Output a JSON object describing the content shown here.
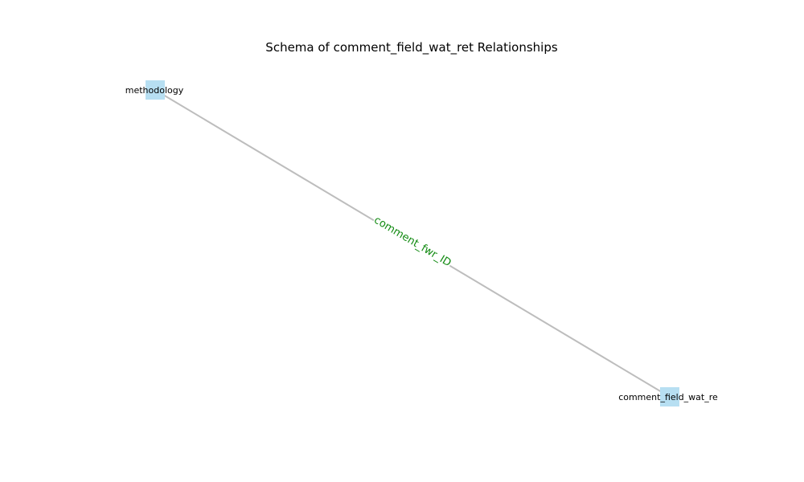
{
  "diagram": {
    "title": "Schema of comment_field_wat_ret Relationships",
    "nodes": [
      {
        "id": "methodology",
        "label": "methodology"
      },
      {
        "id": "comment_field_wat_ret",
        "label": "comment_field_wat_re"
      }
    ],
    "edges": [
      {
        "source": "methodology",
        "target": "comment_field_wat_ret",
        "label": "comment_fwr_ID"
      }
    ]
  },
  "colors": {
    "node_fill": "#b7dff2",
    "edge_stroke": "#bdbdbd",
    "edge_label": "#118a11",
    "title": "#000000"
  }
}
